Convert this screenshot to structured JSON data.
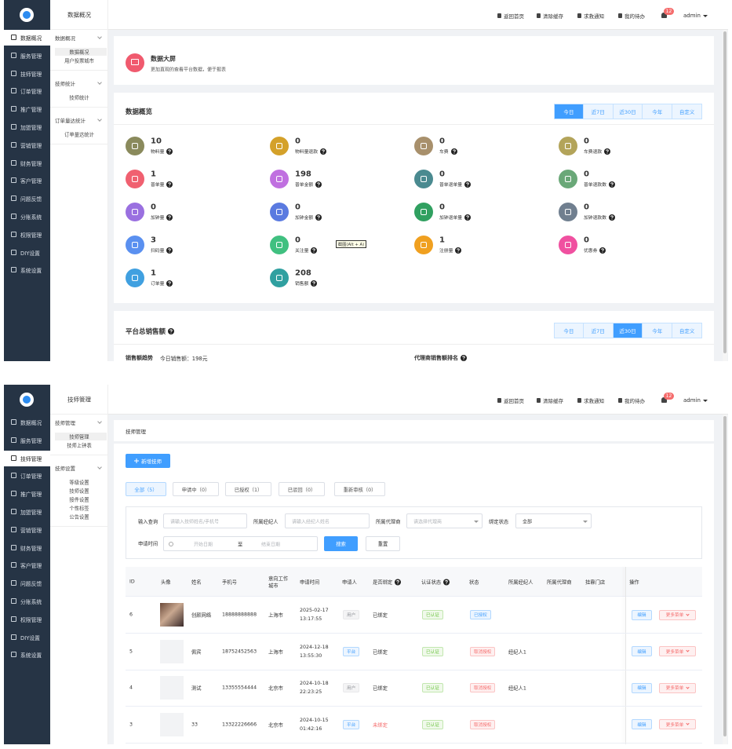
{
  "screens": [
    {
      "header": {
        "title": "数据概况",
        "links": [
          "返回首页",
          "清除缓存",
          "求救通知",
          "我的待办"
        ],
        "badge": "12",
        "user": "admin"
      },
      "menu": [
        "数据概况",
        "服务管理",
        "技师管理",
        "订单管理",
        "推广管理",
        "加盟管理",
        "营销管理",
        "财务管理",
        "客户管理",
        "问题反馈",
        "分账系统",
        "权限管理",
        "DIY设置",
        "系统设置"
      ],
      "submenu": [
        {
          "title": "数据概况",
          "items": [
            "数据概况",
            "用户投票城市"
          ]
        },
        {
          "title": "技师统计",
          "items": [
            "技师统计"
          ]
        },
        {
          "title": "订单量达统计",
          "items": [
            "订单量达统计"
          ]
        }
      ],
      "banner": {
        "title": "数据大屏",
        "desc": "更加直观的查看平台数据，便于报表"
      },
      "overview": {
        "title": "数据概览",
        "tabs": [
          "今日",
          "近7日",
          "近30日",
          "今年",
          "自定义"
        ],
        "stats": [
          {
            "value": 10,
            "label": "物料量"
          },
          {
            "value": 0,
            "label": "物料量退款"
          },
          {
            "value": 0,
            "label": "车费"
          },
          {
            "value": 0,
            "label": "车费退款"
          },
          {
            "value": 1,
            "label": "普单量"
          },
          {
            "value": 198,
            "label": "普单金额"
          },
          {
            "value": 0,
            "label": "普单退单量"
          },
          {
            "value": 0,
            "label": "普单退款数"
          },
          {
            "value": 0,
            "label": "加钟量"
          },
          {
            "value": 0,
            "label": "加钟金额"
          },
          {
            "value": 0,
            "label": "加钟退单量"
          },
          {
            "value": 0,
            "label": "加钟退款数"
          },
          {
            "value": 3,
            "label": "扫码量"
          },
          {
            "value": 0,
            "label": "关注量"
          },
          {
            "value": 1,
            "label": "注册量"
          },
          {
            "value": 0,
            "label": "优惠券"
          },
          {
            "value": 1,
            "label": "订单量"
          },
          {
            "value": 208,
            "label": "销售额"
          }
        ]
      },
      "tooltip": "截图(Alt + A)",
      "sales": {
        "title": "平台总销售额",
        "tabs": [
          "今日",
          "近7日",
          "近30日",
          "今年",
          "自定义"
        ],
        "trend": "销售额趋势",
        "today": "今日销售额：198元",
        "rank": "代理商销售额排名"
      }
    },
    {
      "header": {
        "title": "技师管理",
        "links": [
          "返回首页",
          "清除缓存",
          "求救通知",
          "我的待办"
        ],
        "badge": "12",
        "user": "admin"
      },
      "menu": [
        "数据概况",
        "服务管理",
        "技师管理",
        "订单管理",
        "推广管理",
        "加盟管理",
        "营销管理",
        "财务管理",
        "客户管理",
        "问题反馈",
        "分账系统",
        "权限管理",
        "DIY设置",
        "系统设置"
      ],
      "submenu": [
        {
          "title": "技师管理",
          "items": [
            "技师管理",
            "技师上钟表"
          ]
        },
        {
          "title": "技师设置",
          "items": [
            "等级设置",
            "技师设置",
            "接件设置",
            "个性标签",
            "公告设置"
          ]
        }
      ],
      "breadcrumb": "技师管理",
      "add_button": "新增技师",
      "status_tabs": [
        "全部（5）",
        "申请中（0）",
        "已授权（1）",
        "已驳回（0）",
        "重新审核（0）"
      ],
      "filters": {
        "keyword_label": "输入查询",
        "keyword_placeholder": "请输入技师姓名/手机号",
        "broker_label": "所属经纪人",
        "broker_placeholder": "请输入经纪人姓名",
        "agent_label": "所属代理商",
        "agent_placeholder": "请选择代理商",
        "bind_label": "绑定状态",
        "bind_value": "全部",
        "time_label": "申请时间",
        "start": "开始日期",
        "to": "至",
        "end": "结束日期",
        "search": "搜索",
        "reset": "重置"
      },
      "table": {
        "headers": [
          "ID",
          "头像",
          "姓名",
          "手机号",
          "意向工作城市",
          "申请时间",
          "申请人",
          "是否绑定",
          "认证状态",
          "状态",
          "所属经纪人",
          "所属代理商",
          "挂靠门店",
          "操作"
        ],
        "rows": [
          {
            "id": 6,
            "name": "创颜网络",
            "phone": "18888888888",
            "city": "上海市",
            "time": "2025-02-17 13:17:55",
            "applicant": {
              "text": "用户",
              "color": "#909399",
              "bg": "#f4f4f5"
            },
            "bound": {
              "text": "已绑定",
              "color": "#333333"
            },
            "cert": "已认证",
            "status": {
              "text": "已授权",
              "color": "#409eff",
              "bg": "#ecf5ff"
            },
            "edit": "编辑",
            "more": "更多菜单"
          },
          {
            "id": 5,
            "name": "佩宾",
            "phone": "18752452563",
            "city": "上海市",
            "time": "2024-12-18 13:55:30",
            "applicant": {
              "text": "平台",
              "color": "#409eff",
              "bg": "#ecf5ff"
            },
            "bound": {
              "text": "已绑定",
              "color": "#333333"
            },
            "cert": "已认证",
            "status": {
              "text": "取消授权",
              "color": "#f56c6c",
              "bg": "#fef0f0"
            },
            "broker": "经纪人1",
            "edit": "编辑",
            "more": "更多菜单"
          },
          {
            "id": 4,
            "name": "测试",
            "phone": "13355554444",
            "city": "北京市",
            "time": "2024-10-18 22:23:25",
            "applicant": {
              "text": "用户",
              "color": "#909399",
              "bg": "#f4f4f5"
            },
            "bound": {
              "text": "已绑定",
              "color": "#333333"
            },
            "cert": "已认证",
            "status": {
              "text": "取消授权",
              "color": "#f56c6c",
              "bg": "#fef0f0"
            },
            "broker": "经纪人1",
            "edit": "编辑",
            "more": "更多菜单"
          },
          {
            "id": 3,
            "name": "33",
            "phone": "13322226666",
            "city": "北京市",
            "time": "2024-10-15 01:42:16",
            "applicant": {
              "text": "平台",
              "color": "#409eff",
              "bg": "#ecf5ff"
            },
            "bound": {
              "text": "未绑定",
              "color": "#f56c6c"
            },
            "cert": "已认证",
            "status": {
              "text": "取消授权",
              "color": "#f56c6c",
              "bg": "#fef0f0"
            },
            "edit": "编辑",
            "more": "更多菜单"
          }
        ]
      }
    }
  ]
}
